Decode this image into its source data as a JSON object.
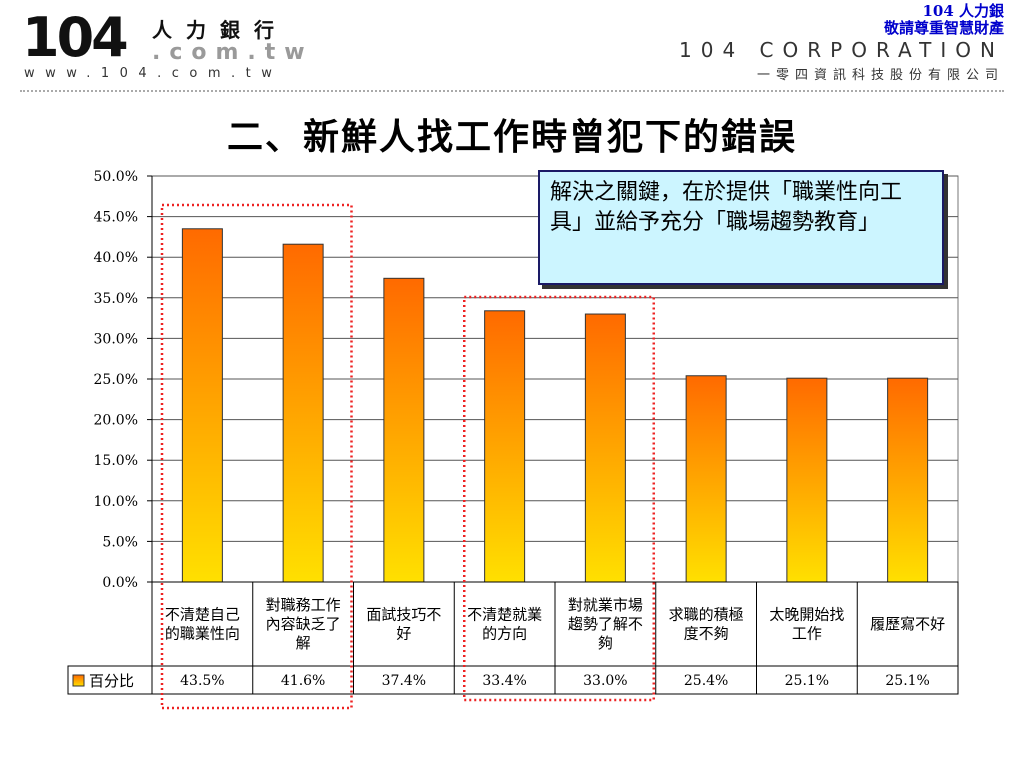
{
  "header": {
    "logo_number": "104",
    "logo_cn": "人力銀行",
    "logo_com": ".com.tw",
    "logo_www": "www.104.com.tw",
    "corner_line1": "104 人力銀",
    "corner_line2": "敬請尊重智慧財產",
    "corp_en": "104 CORPORATION",
    "corp_cn": "一零四資訊科技股份有限公司"
  },
  "title": "二、新鮮人找工作時曾犯下的錯誤",
  "callout": "解決之關鍵，在於提供「職業性向工具」並給予充分「職場趨勢教育」",
  "chart_data": {
    "type": "bar",
    "categories": [
      [
        "不清楚自己",
        "的職業性向"
      ],
      [
        "對職務工作",
        "內容缺乏了",
        "解"
      ],
      [
        "面試技巧不",
        "好"
      ],
      [
        "不清楚就業",
        "的方向"
      ],
      [
        "對就業市場",
        "趨勢了解不",
        "夠"
      ],
      [
        "求職的積極",
        "度不夠"
      ],
      [
        "太晚開始找",
        "工作"
      ],
      [
        "履歷寫不好"
      ]
    ],
    "series": [
      {
        "name": "百分比",
        "values": [
          43.5,
          41.6,
          37.4,
          33.4,
          33.0,
          25.4,
          25.1,
          25.1
        ]
      }
    ],
    "value_labels": [
      "43.5%",
      "41.6%",
      "37.4%",
      "33.4%",
      "33.0%",
      "25.4%",
      "25.1%",
      "25.1%"
    ],
    "y_ticks": [
      "0.0%",
      "5.0%",
      "10.0%",
      "15.0%",
      "20.0%",
      "25.0%",
      "30.0%",
      "35.0%",
      "40.0%",
      "45.0%",
      "50.0%"
    ],
    "ylim": [
      0,
      50
    ],
    "grid": true,
    "legend": "data-table-row",
    "highlight_groups": [
      [
        0,
        1
      ],
      [
        3,
        4
      ]
    ],
    "colors": {
      "bar_top": "#ff6a00",
      "bar_bottom": "#ffe000",
      "bar_edge": "#333333",
      "highlight": "#ee2222"
    }
  }
}
